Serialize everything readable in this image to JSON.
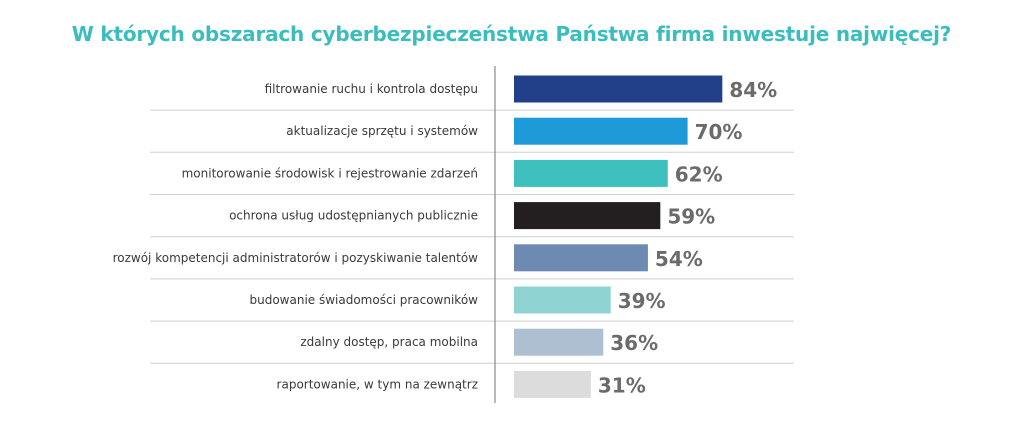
{
  "chart_data": {
    "type": "bar",
    "orientation": "horizontal",
    "title": "W których obszarach cyberbezpieczeństwa Państwa firma inwestuje najwięcej?",
    "xlabel": "",
    "ylabel": "",
    "xlim": [
      0,
      100
    ],
    "grid": false,
    "categories": [
      "filtrowanie ruchu i kontrola dostępu",
      "aktualizacje sprzętu i systemów",
      "monitorowanie środowisk i rejestrowanie zdarzeń",
      "ochrona usług udostępnianych publicznie",
      "rozwój kompetencji administratorów i pozyskiwanie talentów",
      "budowanie świadomości pracowników",
      "zdalny dostęp, praca mobilna",
      "raportowanie, w tym na zewnątrz"
    ],
    "values": [
      84,
      70,
      62,
      59,
      54,
      39,
      36,
      31
    ],
    "value_labels": [
      "84%",
      "70%",
      "62%",
      "59%",
      "54%",
      "39%",
      "36%",
      "31%"
    ],
    "colors": [
      "#223f8a",
      "#1f9ad9",
      "#3ec1be",
      "#231f20",
      "#6d8ab3",
      "#8fd4d3",
      "#adbfd0",
      "#dcdcdc"
    ]
  }
}
